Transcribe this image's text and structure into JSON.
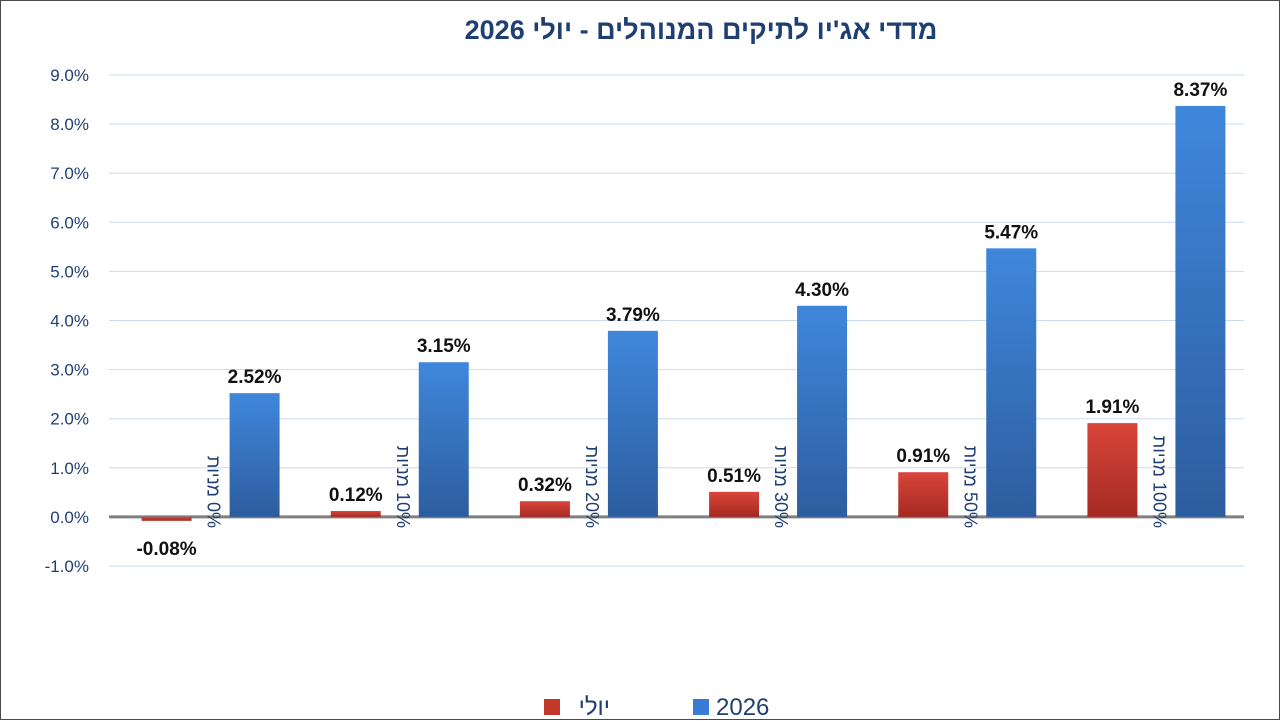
{
  "chart_data": {
    "type": "bar",
    "title": "מדדי אג'יו לתיקים המנוהלים  -  יולי 2026",
    "categories": [
      "0% מניות",
      "10% מניות",
      "20% מניות",
      "30% מניות",
      "50% מניות",
      "100% מניות"
    ],
    "series": [
      {
        "name": "יולי",
        "values": [
          -0.08,
          0.12,
          0.32,
          0.51,
          0.91,
          1.91
        ],
        "color": "#c0392b"
      },
      {
        "name": "2026",
        "values": [
          2.52,
          3.15,
          3.79,
          4.3,
          5.47,
          8.37
        ],
        "color": "#3a7bd5"
      }
    ],
    "data_labels": [
      [
        "-0.08%",
        "0.12%",
        "0.32%",
        "0.51%",
        "0.91%",
        "1.91%"
      ],
      [
        "2.52%",
        "3.15%",
        "3.79%",
        "4.30%",
        "5.47%",
        "8.37%"
      ]
    ],
    "yticks": [
      "9.0%",
      "8.0%",
      "7.0%",
      "6.0%",
      "5.0%",
      "4.0%",
      "3.0%",
      "2.0%",
      "1.0%",
      "0.0%",
      "-1.0%"
    ],
    "ylim": [
      -1,
      9
    ],
    "ytick_step": 1,
    "grid": true,
    "legend_position": "bottom",
    "xlabel_rotation": "vertical"
  }
}
